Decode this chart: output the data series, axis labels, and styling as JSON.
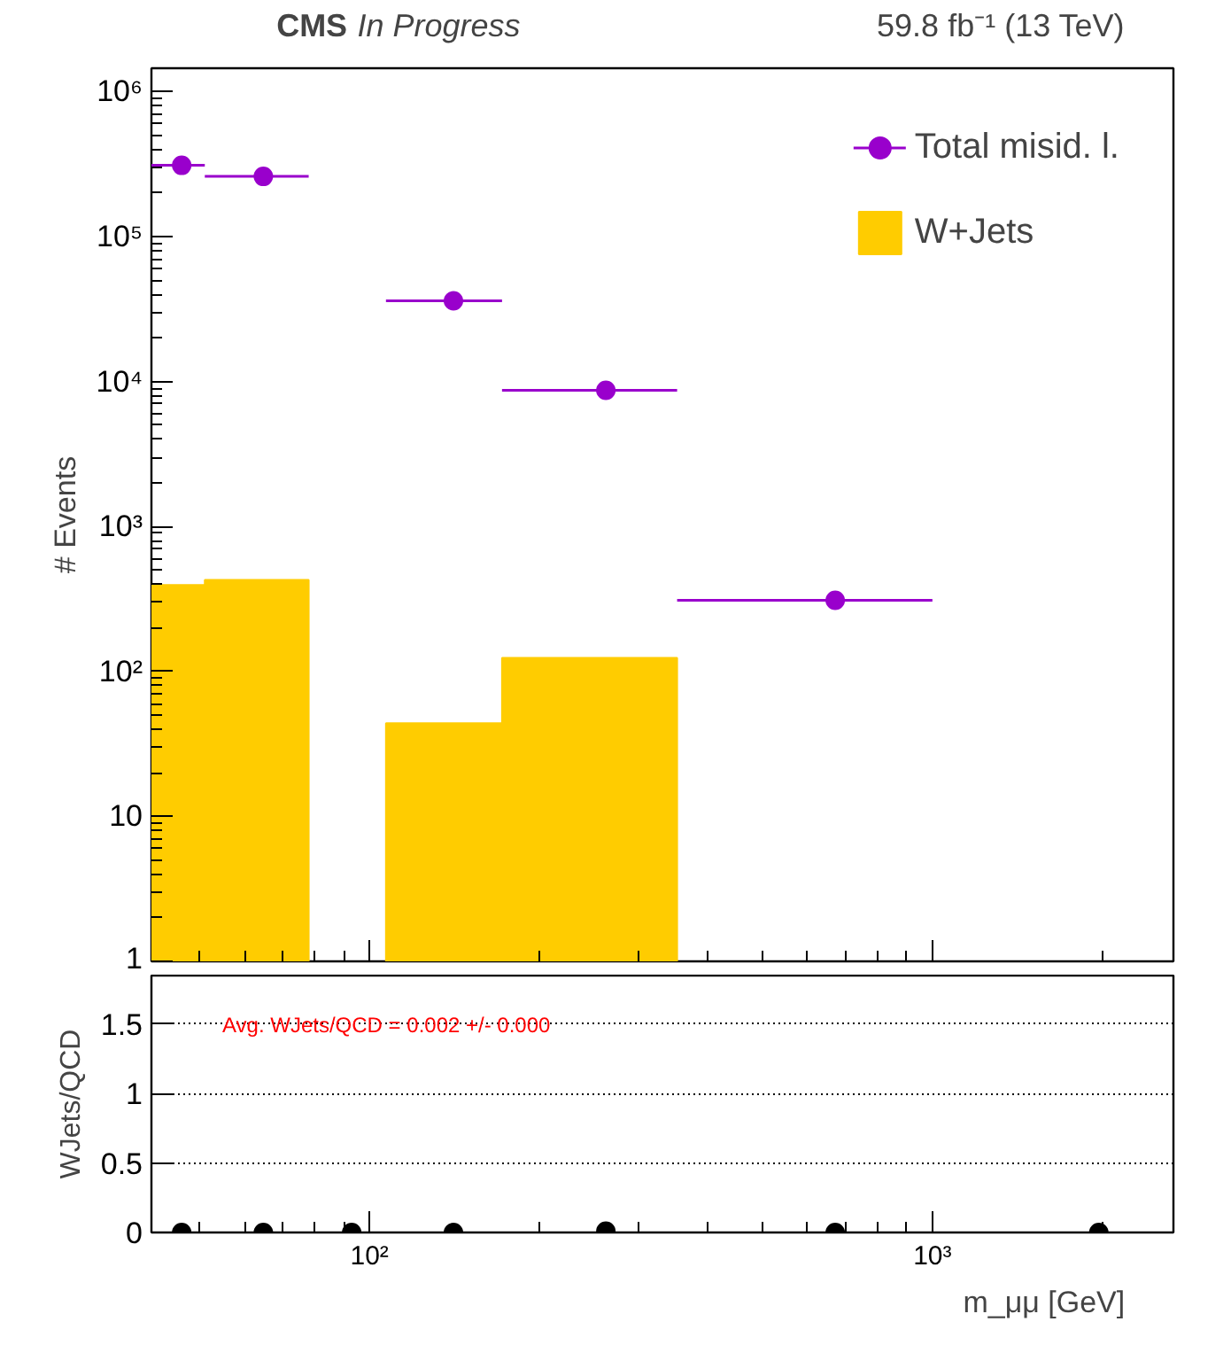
{
  "chart_data": [
    {
      "type": "histogram",
      "title": "CMS",
      "subtitle": "In Progress",
      "annotations": [
        "59.8 fb⁻¹ (13 TeV)"
      ],
      "ylabel": "# Events",
      "bins": [
        41,
        51,
        78,
        107,
        172,
        352
      ],
      "series": [
        {
          "name": "W+Jets",
          "type": "histogram",
          "color": "#ffcc00",
          "values": [
            395,
            428,
            null,
            44,
            124
          ]
        },
        {
          "name": "Total misid. l.",
          "type": "scatter",
          "color": "#9900cc",
          "x": [
            46.4,
            64.8,
            141,
            263,
            672
          ],
          "values": [
            310000,
            260000,
            36000,
            8700,
            310
          ],
          "xerrors": [
            [
              41,
              51
            ],
            [
              51,
              78
            ],
            [
              107,
              172
            ],
            [
              172,
              352
            ],
            [
              352,
              1000
            ]
          ]
        }
      ],
      "log": "xy",
      "xlim": [
        41,
        2680
      ],
      "ylim": [
        1,
        1450000
      ],
      "yticks": [
        {
          "value": 1,
          "label": "1"
        },
        10,
        {
          "value": 100,
          "label": "10²"
        },
        {
          "value": 1000,
          "label": "10³"
        },
        {
          "value": 10000,
          "label": "10⁴"
        },
        {
          "value": 100000,
          "label": "10⁵"
        },
        {
          "value": 1000000,
          "label": "10⁶"
        }
      ],
      "tick_labels": "y",
      "legend": "top right",
      "marker": "circle"
    },
    {
      "type": "scatter",
      "xlabel": "m_μμ [GeV]",
      "ylabel": "WJets/QCD",
      "annotations": [
        "Avg. WJets/QCD = 0.002 +/- 0.000"
      ],
      "x": [
        46.4,
        64.8,
        93,
        141,
        263,
        672,
        1975
      ],
      "values": [
        0,
        0,
        0,
        0,
        0.01,
        0,
        0
      ],
      "color": "#000000",
      "log": "x",
      "xlim": [
        41,
        2680
      ],
      "ylim": [
        0,
        1.85
      ],
      "xticks": [
        {
          "value": 100,
          "label": "10²"
        },
        {
          "value": 1000,
          "label": "10³"
        }
      ],
      "yticks": [
        0,
        0.5,
        1,
        1.5
      ],
      "grid": "y",
      "marker": "circle"
    }
  ]
}
